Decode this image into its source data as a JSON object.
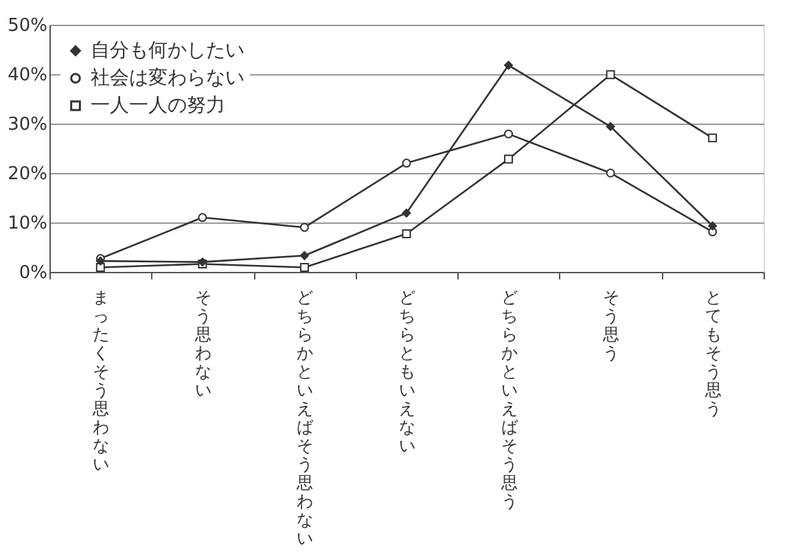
{
  "chart_data": {
    "type": "line",
    "categories": [
      "まったくそう思わない",
      "そう思わない",
      "どちらかといえばそう思わない",
      "どちらともいえない",
      "どちらかといえばそう思う",
      "そう思う",
      "とてもそう思う"
    ],
    "series": [
      {
        "name": "自分も何かしたい",
        "color": "#333333",
        "marker": "diamond",
        "values": [
          2.2,
          2.0,
          3.3,
          11.9,
          41.8,
          29.4,
          9.3
        ]
      },
      {
        "name": "社会は変わらない",
        "color": "#333333",
        "marker": "circle",
        "values": [
          2.7,
          11.0,
          9.0,
          22.0,
          27.9,
          20.0,
          8.1
        ]
      },
      {
        "name": "一人一人の努力",
        "color": "#333333",
        "marker": "square",
        "values": [
          0.9,
          1.6,
          0.9,
          7.7,
          22.8,
          39.9,
          27.1
        ]
      }
    ],
    "ylim": [
      0,
      50
    ],
    "yticks": [
      {
        "value": 0,
        "label": "0%"
      },
      {
        "value": 10,
        "label": "10%"
      },
      {
        "value": 20,
        "label": "20%"
      },
      {
        "value": 30,
        "label": "30%"
      },
      {
        "value": 40,
        "label": "40%"
      },
      {
        "value": 50,
        "label": "50%"
      }
    ],
    "grid": "y",
    "legend": "top left",
    "line_style": "solid"
  }
}
